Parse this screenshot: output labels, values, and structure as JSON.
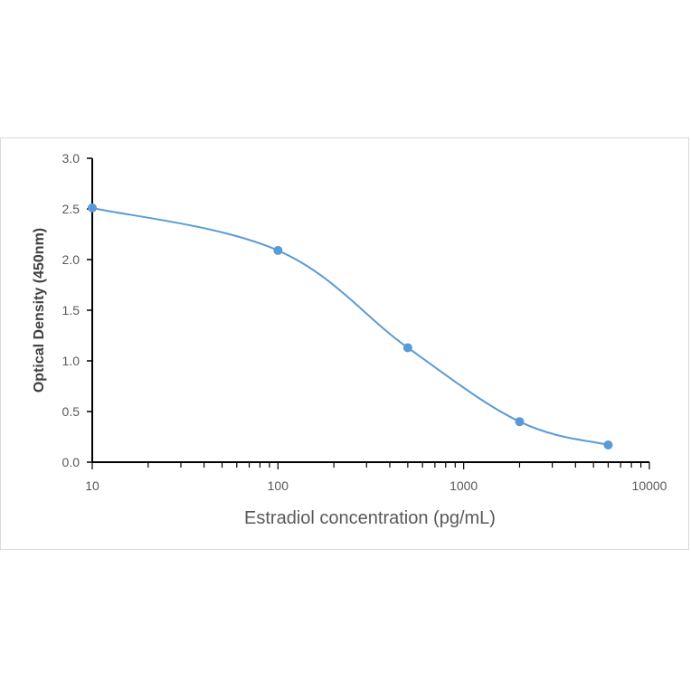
{
  "chart_data": {
    "type": "line",
    "title": "",
    "xlabel": "Estradiol concentration (pg/mL)",
    "ylabel": "Optical Density (450nm)",
    "x_scale": "log",
    "xlim": [
      10,
      10000
    ],
    "ylim": [
      0,
      3.0
    ],
    "x_ticks": [
      "10",
      "100",
      "1000",
      "10000"
    ],
    "y_ticks": [
      "0.0",
      "0.5",
      "1.0",
      "1.5",
      "2.0",
      "2.5",
      "3.0"
    ],
    "grid": false,
    "legend": "none",
    "series": [
      {
        "x": [
          10,
          100,
          500,
          2000,
          6000
        ],
        "y": [
          2.51,
          2.09,
          1.13,
          0.4,
          0.17
        ],
        "color": "#5b9bd5",
        "smooth": true
      }
    ]
  }
}
